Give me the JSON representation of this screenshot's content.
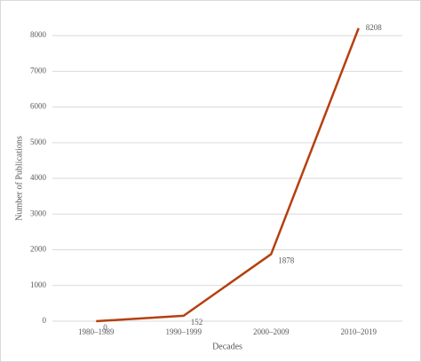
{
  "chart_data": {
    "type": "line",
    "categories": [
      "1980–1989",
      "1990–1999",
      "2000–2009",
      "2010–2019"
    ],
    "series": [
      {
        "name": "Number of Publications",
        "color": "#b5400f",
        "values": [
          0,
          152,
          1878,
          8208
        ]
      }
    ],
    "x_label": "Decades",
    "y_label": "Number of Publications",
    "ylim": [
      0,
      8500
    ],
    "yticks": [
      0,
      1000,
      2000,
      3000,
      4000,
      5000,
      6000,
      7000,
      8000
    ],
    "grid": true
  }
}
